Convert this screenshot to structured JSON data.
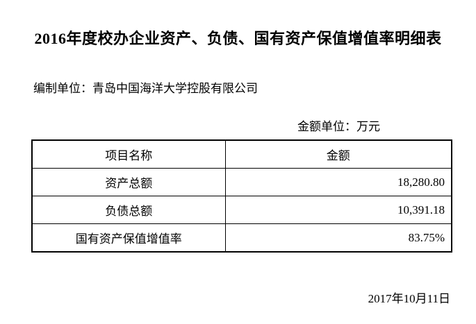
{
  "title": "2016年度校办企业资产、负债、国有资产保值增值率明细表",
  "prepared_by": "编制单位：青岛中国海洋大学控股有限公司",
  "unit_note": "金额单位：万元",
  "table": {
    "headers": {
      "item": "项目名称",
      "amount": "金额"
    },
    "rows": [
      {
        "label": "资产总额",
        "value": "18,280.80"
      },
      {
        "label": "负债总额",
        "value": "10,391.18"
      },
      {
        "label": "国有资产保值增值率",
        "value": "83.75%"
      }
    ]
  },
  "date": "2017年10月11日",
  "colors": {
    "text": "#000000",
    "background": "#ffffff",
    "border": "#000000"
  }
}
